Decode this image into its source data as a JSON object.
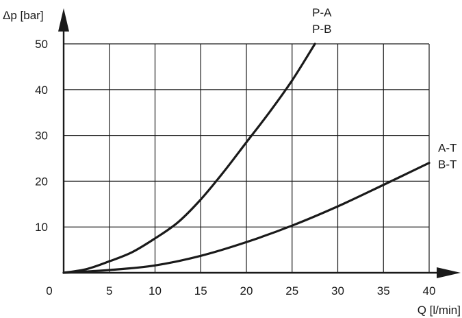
{
  "chart_data": {
    "type": "line",
    "title": "",
    "xlabel": "Q [l/min]",
    "ylabel": "Δp [bar]",
    "xlim": [
      0,
      40
    ],
    "ylim": [
      0,
      50
    ],
    "x_ticks": [
      "0",
      "5",
      "10",
      "15",
      "20",
      "25",
      "30",
      "35",
      "40"
    ],
    "y_ticks": [
      "10",
      "20",
      "30",
      "40",
      "50"
    ],
    "grid": true,
    "series": [
      {
        "label_lines": [
          "P-A",
          "P-B"
        ],
        "x": [
          0,
          2.5,
          5,
          7.5,
          10,
          12.5,
          15,
          17.5,
          20,
          22.5,
          25,
          27.5
        ],
        "y": [
          0,
          0.8,
          2.5,
          4.5,
          7.5,
          11,
          16,
          22,
          28.5,
          35,
          42,
          50
        ]
      },
      {
        "label_lines": [
          "A-T",
          "B-T"
        ],
        "x": [
          0,
          5,
          10,
          15,
          20,
          25,
          30,
          35,
          40
        ],
        "y": [
          0,
          0.6,
          1.6,
          3.7,
          6.7,
          10.3,
          14.5,
          19.2,
          24
        ]
      }
    ]
  }
}
